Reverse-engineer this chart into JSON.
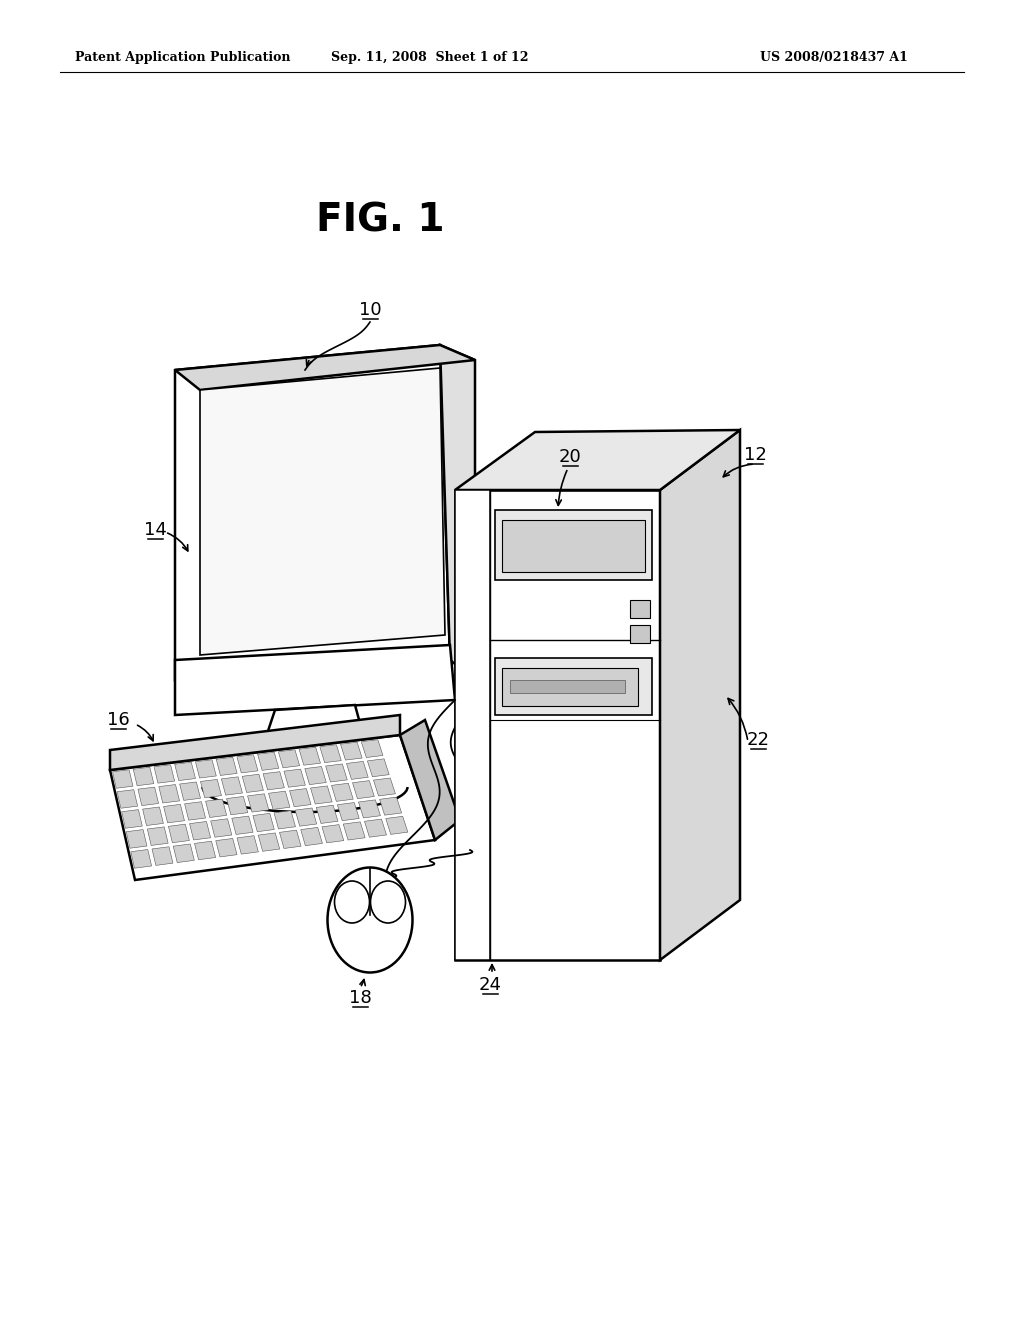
{
  "background_color": "#ffffff",
  "header_left": "Patent Application Publication",
  "header_mid": "Sep. 11, 2008  Sheet 1 of 12",
  "header_right": "US 2008/0218437 A1",
  "fig_title": "FIG. 1",
  "line_color": "#000000",
  "text_color": "#000000",
  "label_fontsize": 13,
  "header_fontsize": 9,
  "title_fontsize": 28
}
